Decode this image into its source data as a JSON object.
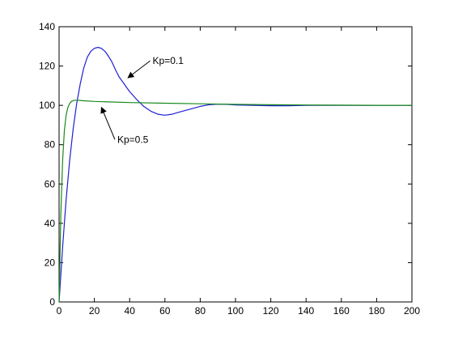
{
  "chart_data": {
    "type": "line",
    "title": "",
    "xlabel": "",
    "ylabel": "",
    "xlim": [
      0,
      200
    ],
    "ylim": [
      0,
      140
    ],
    "xticks": [
      0,
      20,
      40,
      60,
      80,
      100,
      120,
      140,
      160,
      180,
      200
    ],
    "yticks": [
      0,
      20,
      40,
      60,
      80,
      100,
      120,
      140
    ],
    "grid": false,
    "legend": "none",
    "series": [
      {
        "color": "#1f1fd0",
        "x": [
          0,
          2,
          4,
          6,
          8,
          10,
          12,
          14,
          16,
          18,
          20,
          22,
          24,
          26,
          28,
          30,
          32,
          34,
          36,
          38,
          40,
          44,
          48,
          52,
          56,
          60,
          64,
          68,
          72,
          76,
          80,
          85,
          90,
          95,
          100,
          110,
          120,
          130,
          135,
          140,
          160,
          180,
          200
        ],
        "y": [
          0,
          28,
          52,
          72,
          88,
          101,
          111,
          119,
          124.5,
          127.5,
          129,
          129.5,
          129,
          127.5,
          125,
          122,
          118,
          114.5,
          112,
          109.5,
          107,
          103,
          99.5,
          97,
          95.5,
          95,
          95.5,
          96.5,
          97.5,
          98.5,
          99.5,
          100.3,
          100.6,
          100.5,
          100.2,
          100,
          99.8,
          99.8,
          99.9,
          100,
          100,
          100,
          100
        ]
      },
      {
        "color": "#1a8a1a",
        "x": [
          0,
          1,
          2,
          3,
          4,
          5,
          6,
          7,
          8,
          9,
          10,
          12,
          15,
          20,
          30,
          40,
          60,
          80,
          100,
          120,
          140,
          160,
          180,
          200
        ],
        "y": [
          0,
          45,
          72,
          87,
          95,
          99,
          101,
          102,
          102.4,
          102.6,
          102.6,
          102.5,
          102.3,
          102,
          101.7,
          101.4,
          101.1,
          100.8,
          100.5,
          100.3,
          100.2,
          100.1,
          100,
          100
        ]
      }
    ],
    "annotations": [
      {
        "text": "Kp=0.1",
        "x": 53,
        "y": 121,
        "arrow_to_x": 39,
        "arrow_to_y": 114
      },
      {
        "text": "Kp=0.5",
        "x": 33,
        "y": 81,
        "arrow_to_x": 24,
        "arrow_to_y": 99
      }
    ]
  }
}
